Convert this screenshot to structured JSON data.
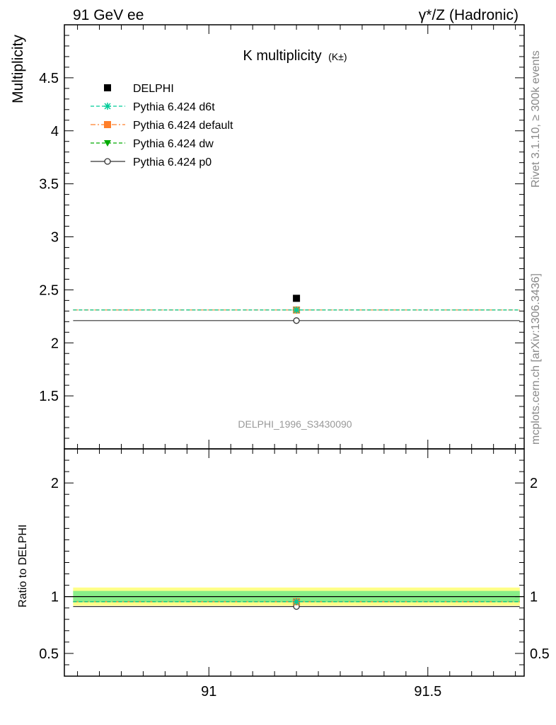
{
  "header": {
    "left": "91 GeV ee",
    "right": "γ*/Z (Hadronic)"
  },
  "side_labels": {
    "rivet": "Rivet 3.1.10, ≥ 300k events",
    "mcplots": "mcplots.cern.ch [arXiv:1306.3436]"
  },
  "chart_data": [
    {
      "type": "scatter",
      "title": "K multiplicity",
      "title_suffix": "(K±)",
      "ylabel": "Multiplicity",
      "xlabel": "",
      "watermark": "DELPHI_1996_S3430090",
      "xlim": [
        90.67,
        91.72
      ],
      "ylim": [
        1.0,
        5.0
      ],
      "x_ticks": [
        91,
        91.5
      ],
      "x_tick_labels": [
        "91",
        "91.5"
      ],
      "y_ticks": [
        1.5,
        2,
        2.5,
        3,
        3.5,
        4,
        4.5
      ],
      "y_tick_labels": [
        "1.5",
        "2",
        "2.5",
        "3",
        "3.5",
        "4",
        "4.5"
      ],
      "legend_position": "top-left",
      "bin": [
        90.69,
        91.71
      ],
      "x_point": 91.2,
      "series": [
        {
          "name": "DELPHI",
          "value": 2.42,
          "color": "#000000",
          "marker": "square",
          "line": "none"
        },
        {
          "name": "Pythia 6.424 d6t",
          "value": 2.31,
          "color": "#00cc99",
          "marker": "star",
          "line": "dashed"
        },
        {
          "name": "Pythia 6.424 default",
          "value": 2.31,
          "color": "#ff7f2a",
          "marker": "square",
          "line": "dashdot"
        },
        {
          "name": "Pythia 6.424 dw",
          "value": 2.31,
          "color": "#00aa00",
          "marker": "triangle-down",
          "line": "dashed"
        },
        {
          "name": "Pythia 6.424 p0",
          "value": 2.21,
          "color": "#333333",
          "marker": "circle-open",
          "line": "solid"
        }
      ]
    },
    {
      "type": "scatter",
      "title": "",
      "ylabel": "Ratio to DELPHI",
      "xlim": [
        90.67,
        91.72
      ],
      "ylim": [
        0.3,
        2.3
      ],
      "y_ticks": [
        0.5,
        1,
        2
      ],
      "y_tick_labels": [
        "0.5",
        "1",
        "2"
      ],
      "bands": [
        {
          "low": 0.92,
          "high": 1.08,
          "color": "#ffff88"
        },
        {
          "low": 0.95,
          "high": 1.05,
          "color": "#88ee88"
        }
      ],
      "series": [
        {
          "name": "Pythia 6.424 d6t",
          "value": 0.955,
          "color": "#00cc99",
          "marker": "star",
          "line": "dashed"
        },
        {
          "name": "Pythia 6.424 default",
          "value": 0.955,
          "color": "#ff7f2a",
          "marker": "square",
          "line": "dashdot"
        },
        {
          "name": "Pythia 6.424 dw",
          "value": 0.955,
          "color": "#00aa00",
          "marker": "triangle-down",
          "line": "dashed"
        },
        {
          "name": "Pythia 6.424 p0",
          "value": 0.913,
          "color": "#333333",
          "marker": "circle-open",
          "line": "solid"
        }
      ]
    }
  ]
}
